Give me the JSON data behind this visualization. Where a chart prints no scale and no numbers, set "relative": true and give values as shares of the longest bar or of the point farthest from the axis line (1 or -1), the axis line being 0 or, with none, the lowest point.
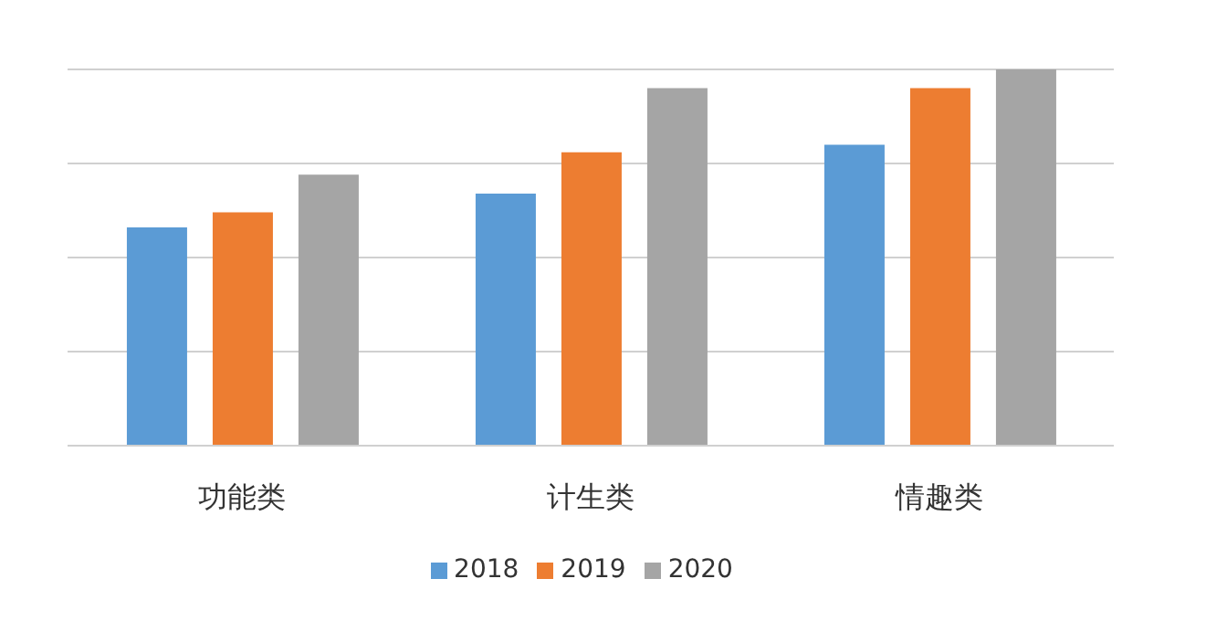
{
  "chart_data": {
    "type": "bar",
    "relative": true,
    "categories": [
      "功能类",
      "计生类",
      "情趣类"
    ],
    "series": [
      {
        "name": "2018",
        "color": "#5b9bd5",
        "values": [
          0.58,
          0.67,
          0.8
        ]
      },
      {
        "name": "2019",
        "color": "#ed7d31",
        "values": [
          0.62,
          0.78,
          0.95
        ]
      },
      {
        "name": "2020",
        "color": "#a5a5a5",
        "values": [
          0.72,
          0.95,
          1
        ]
      }
    ],
    "grid": "y",
    "legend": "bottom"
  }
}
